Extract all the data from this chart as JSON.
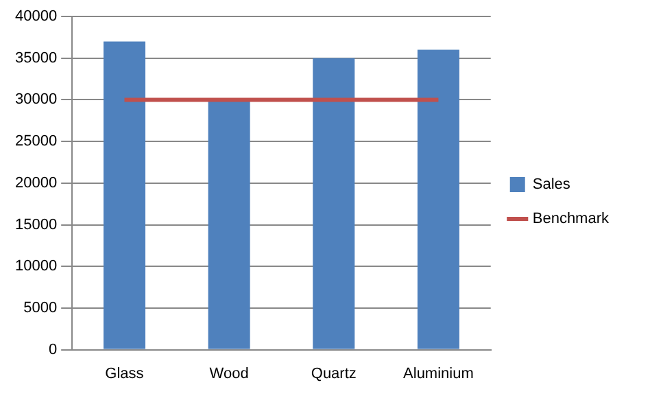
{
  "chart_data": {
    "type": "bar",
    "categories": [
      "Glass",
      "Wood",
      "Quartz",
      "Aluminium"
    ],
    "series": [
      {
        "name": "Sales",
        "color": "#4f81bd",
        "values": [
          37000,
          30000,
          35000,
          36000
        ]
      },
      {
        "name": "Benchmark",
        "type": "line",
        "color": "#c0504d",
        "values": [
          30000,
          30000,
          30000,
          30000
        ]
      }
    ],
    "ylim": [
      0,
      40000
    ],
    "yticks": [
      0,
      5000,
      10000,
      15000,
      20000,
      25000,
      30000,
      35000,
      40000
    ],
    "grid": "y",
    "legend": "right",
    "marker": "none"
  }
}
